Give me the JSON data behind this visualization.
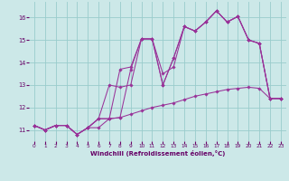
{
  "xlabel": "Windchill (Refroidissement éolien,°C)",
  "background_color": "#cce8e8",
  "grid_color": "#99cccc",
  "line_color": "#993399",
  "xlim": [
    -0.5,
    23.5
  ],
  "ylim": [
    10.5,
    16.7
  ],
  "yticks": [
    11,
    12,
    13,
    14,
    15,
    16
  ],
  "xticks": [
    0,
    1,
    2,
    3,
    4,
    5,
    6,
    7,
    8,
    9,
    10,
    11,
    12,
    13,
    14,
    15,
    16,
    17,
    18,
    19,
    20,
    21,
    22,
    23
  ],
  "series": [
    [
      11.2,
      11.0,
      11.2,
      11.2,
      10.8,
      11.1,
      11.1,
      11.5,
      11.55,
      11.7,
      11.85,
      12.0,
      12.1,
      12.2,
      12.35,
      12.5,
      12.6,
      12.7,
      12.8,
      12.85,
      12.9,
      12.85,
      12.4,
      12.4
    ],
    [
      11.2,
      11.0,
      11.2,
      11.2,
      10.8,
      11.1,
      11.5,
      13.0,
      12.9,
      13.0,
      15.05,
      15.05,
      13.0,
      14.2,
      15.6,
      15.4,
      15.8,
      16.3,
      15.8,
      16.05,
      15.0,
      14.85,
      12.4,
      12.4
    ],
    [
      11.2,
      11.0,
      11.2,
      11.2,
      10.8,
      11.1,
      11.5,
      11.5,
      13.7,
      13.8,
      15.05,
      15.05,
      13.5,
      13.8,
      15.6,
      15.4,
      15.8,
      16.3,
      15.8,
      16.05,
      15.0,
      14.85,
      12.4,
      12.4
    ],
    [
      11.2,
      11.0,
      11.2,
      11.2,
      10.8,
      11.1,
      11.5,
      11.5,
      11.55,
      13.7,
      15.05,
      15.05,
      13.0,
      14.2,
      15.6,
      15.4,
      15.8,
      16.3,
      15.8,
      16.05,
      15.0,
      14.85,
      12.4,
      12.4
    ]
  ]
}
